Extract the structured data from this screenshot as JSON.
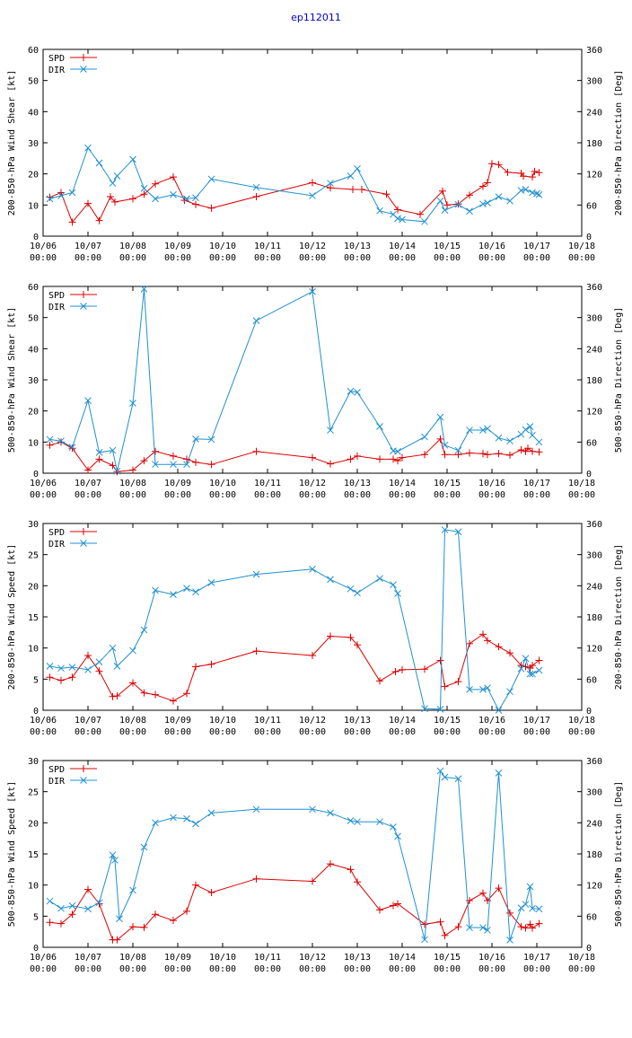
{
  "title": "ep112011",
  "colors": {
    "spd": "#dd0000",
    "dir": "#2090d0",
    "axis": "#000000"
  },
  "x_ticks": [
    "10/06",
    "10/07",
    "10/08",
    "10/09",
    "10/10",
    "10/11",
    "10/12",
    "10/13",
    "10/14",
    "10/15",
    "10/16",
    "10/17",
    "10/18"
  ],
  "x_ticks_time": "00:00",
  "chart_data": [
    {
      "type": "line",
      "ylabel": "200-850-hPa Wind Shear [kt]",
      "y2label": "200-850-hPa Direction [Deg]",
      "ylim": [
        0,
        60
      ],
      "yticks": [
        0,
        10,
        20,
        30,
        40,
        50,
        60
      ],
      "y2lim": [
        0,
        360
      ],
      "y2ticks": [
        0,
        60,
        120,
        180,
        240,
        300,
        360
      ],
      "xlim": [
        0,
        12
      ],
      "series": [
        {
          "name": "SPD",
          "axis": "left",
          "x": [
            0.15,
            0.4,
            0.65,
            1.0,
            1.25,
            1.5,
            1.6,
            2.0,
            2.25,
            2.5,
            2.9,
            3.15,
            3.4,
            3.75,
            4.75,
            6.0,
            6.4,
            6.9,
            7.1,
            7.65,
            7.9,
            8.4,
            8.9,
            9.0,
            9.25,
            9.5,
            9.8,
            9.9,
            10.0,
            10.15,
            10.35,
            10.65,
            10.7,
            10.9,
            10.95,
            11.05
          ],
          "y": [
            12.5,
            14,
            4.5,
            10.5,
            5,
            12.7,
            11,
            12,
            13.5,
            16.8,
            19,
            11.5,
            10.2,
            9,
            12.7,
            17.2,
            15.5,
            15,
            15,
            13.5,
            8.5,
            7,
            14.5,
            10,
            10.3,
            13.2,
            16,
            17.2,
            23.3,
            23,
            20.5,
            20.2,
            19.3,
            19,
            20.8,
            20.4
          ]
        },
        {
          "name": "DIR",
          "axis": "right",
          "x": [
            0.15,
            0.4,
            0.65,
            1.0,
            1.25,
            1.55,
            1.65,
            2.0,
            2.25,
            2.5,
            2.9,
            3.2,
            3.4,
            3.75,
            4.75,
            6.0,
            6.4,
            6.85,
            7.0,
            7.5,
            7.8,
            7.9,
            8.0,
            8.5,
            8.85,
            8.95,
            9.25,
            9.5,
            9.8,
            9.9,
            10.15,
            10.4,
            10.65,
            10.75,
            10.9,
            11.0,
            11.05
          ],
          "y": [
            72,
            78,
            84,
            170,
            141,
            102,
            116,
            148,
            92,
            72,
            80,
            72,
            74,
            110,
            94,
            78,
            102,
            116,
            130,
            49,
            42,
            34,
            32,
            28,
            68,
            50,
            61,
            48,
            62,
            64,
            76,
            68,
            88,
            90,
            84,
            82,
            80
          ]
        }
      ]
    },
    {
      "type": "line",
      "ylabel": "500-850-hPa Wind Shear [kt]",
      "y2label": "500-850-hPa Direction [Deg]",
      "ylim": [
        0,
        60
      ],
      "yticks": [
        0,
        10,
        20,
        30,
        40,
        50,
        60
      ],
      "y2lim": [
        0,
        360
      ],
      "y2ticks": [
        0,
        60,
        120,
        180,
        240,
        300,
        360
      ],
      "xlim": [
        0,
        12
      ],
      "series": [
        {
          "name": "SPD",
          "axis": "left",
          "x": [
            0.15,
            0.4,
            0.65,
            1.0,
            1.25,
            1.55,
            1.65,
            2.0,
            2.25,
            2.5,
            2.9,
            3.2,
            3.4,
            3.75,
            4.75,
            6.0,
            6.4,
            6.85,
            7.0,
            7.5,
            7.8,
            7.9,
            8.0,
            8.5,
            8.85,
            8.95,
            9.25,
            9.5,
            9.8,
            9.9,
            10.15,
            10.4,
            10.65,
            10.75,
            10.8,
            10.9,
            11.05
          ],
          "y": [
            9,
            10,
            8,
            1,
            4.5,
            2.5,
            0.5,
            1,
            4,
            7,
            5.5,
            4.5,
            3.5,
            2.8,
            7,
            5,
            3,
            4.5,
            5.5,
            4.5,
            4.5,
            4,
            5,
            6,
            11,
            6,
            6,
            6.5,
            6.3,
            6,
            6.3,
            5.8,
            7.5,
            7,
            8,
            7,
            6.8
          ]
        },
        {
          "name": "DIR",
          "axis": "right",
          "x": [
            0.15,
            0.4,
            0.65,
            1.0,
            1.25,
            1.55,
            1.65,
            2.0,
            2.25,
            2.5,
            2.9,
            3.2,
            3.4,
            3.75,
            4.75,
            6.0,
            6.4,
            6.85,
            7.0,
            7.5,
            7.8,
            7.9,
            8.5,
            8.85,
            8.95,
            9.25,
            9.5,
            9.8,
            9.9,
            10.15,
            10.4,
            10.65,
            10.75,
            10.85,
            10.9,
            11.05
          ],
          "y": [
            65,
            62,
            50,
            140,
            40,
            44,
            4,
            135,
            355,
            17,
            17,
            17,
            66,
            65,
            294,
            350,
            83,
            158,
            156,
            90,
            43,
            42,
            70,
            108,
            54,
            44,
            83,
            83,
            86,
            68,
            62,
            75,
            84,
            90,
            73,
            60
          ]
        }
      ]
    },
    {
      "type": "line",
      "ylabel": "200-850-hPa Wind Speed [kt]",
      "y2label": "200-850-hPa Direction [Deg]",
      "ylim": [
        0,
        30
      ],
      "yticks": [
        0,
        5,
        10,
        15,
        20,
        25,
        30
      ],
      "y2lim": [
        0,
        360
      ],
      "y2ticks": [
        0,
        60,
        120,
        180,
        240,
        300,
        360
      ],
      "xlim": [
        0,
        12
      ],
      "series": [
        {
          "name": "SPD",
          "axis": "left",
          "x": [
            0.15,
            0.4,
            0.65,
            1.0,
            1.25,
            1.55,
            1.65,
            2.0,
            2.25,
            2.5,
            2.9,
            3.2,
            3.4,
            3.75,
            4.75,
            6.0,
            6.4,
            6.85,
            7.0,
            7.5,
            7.85,
            8.0,
            8.5,
            8.85,
            8.95,
            9.25,
            9.5,
            9.8,
            9.9,
            10.15,
            10.4,
            10.65,
            10.75,
            10.85,
            10.9,
            11.05
          ],
          "y": [
            5.3,
            4.8,
            5.3,
            8.8,
            6.3,
            2.2,
            2.3,
            4.4,
            2.8,
            2.5,
            1.5,
            2.7,
            7,
            7.4,
            9.5,
            8.8,
            11.9,
            11.7,
            10.5,
            4.7,
            6.2,
            6.5,
            6.6,
            8,
            3.8,
            4.6,
            10.7,
            12.2,
            11.2,
            10.2,
            9.2,
            7.2,
            7,
            6.8,
            7.2,
            8
          ]
        },
        {
          "name": "DIR",
          "axis": "right",
          "x": [
            0.15,
            0.4,
            0.65,
            1.0,
            1.25,
            1.55,
            1.65,
            2.0,
            2.25,
            2.5,
            2.9,
            3.2,
            3.4,
            3.75,
            4.75,
            6.0,
            6.4,
            6.85,
            7.0,
            7.5,
            7.8,
            7.9,
            8.5,
            8.85,
            8.95,
            9.25,
            9.5,
            9.8,
            9.9,
            10.15,
            10.4,
            10.65,
            10.75,
            10.85,
            10.9,
            11.05
          ],
          "y": [
            85,
            81,
            83,
            78,
            93,
            120,
            85,
            115,
            155,
            231,
            223,
            235,
            228,
            246,
            262,
            272,
            252,
            234,
            226,
            254,
            242,
            225,
            3,
            2,
            348,
            344,
            40,
            40,
            43,
            0,
            36,
            80,
            100,
            70,
            70,
            77
          ]
        }
      ]
    },
    {
      "type": "line",
      "ylabel": "500-850-hPa Wind Speed [kt]",
      "y2label": "500-850-hPa Direction [Deg]",
      "ylim": [
        0,
        30
      ],
      "yticks": [
        0,
        5,
        10,
        15,
        20,
        25,
        30
      ],
      "y2lim": [
        0,
        360
      ],
      "y2ticks": [
        0,
        60,
        120,
        180,
        240,
        300,
        360
      ],
      "xlim": [
        0,
        12
      ],
      "series": [
        {
          "name": "SPD",
          "axis": "left",
          "x": [
            0.15,
            0.4,
            0.65,
            1.0,
            1.25,
            1.55,
            1.65,
            2.0,
            2.25,
            2.5,
            2.9,
            3.2,
            3.4,
            3.75,
            4.75,
            6.0,
            6.4,
            6.85,
            7.0,
            7.5,
            7.8,
            7.9,
            8.5,
            8.85,
            8.95,
            9.25,
            9.5,
            9.8,
            9.9,
            10.15,
            10.4,
            10.65,
            10.75,
            10.85,
            10.9,
            11.05
          ],
          "y": [
            4,
            3.8,
            5.3,
            9.3,
            7,
            1.2,
            1.2,
            3.3,
            3.2,
            5.3,
            4.3,
            5.8,
            10,
            8.8,
            11,
            10.6,
            13.4,
            12.5,
            10.5,
            6,
            6.7,
            7,
            3.7,
            4.1,
            1.9,
            3.3,
            7.5,
            8.7,
            7.5,
            9.5,
            5.5,
            3.3,
            3.1,
            3.7,
            3.1,
            3.8
          ]
        },
        {
          "name": "DIR",
          "axis": "right",
          "x": [
            0.15,
            0.4,
            0.65,
            1.0,
            1.25,
            1.55,
            1.6,
            1.7,
            2.0,
            2.25,
            2.5,
            2.9,
            3.2,
            3.4,
            3.75,
            4.75,
            6.0,
            6.4,
            6.85,
            7.0,
            7.5,
            7.8,
            7.9,
            8.5,
            8.85,
            8.95,
            9.25,
            9.5,
            9.8,
            9.9,
            10.15,
            10.4,
            10.65,
            10.75,
            10.85,
            10.9,
            11.05
          ],
          "y": [
            89,
            75,
            80,
            74,
            86,
            178,
            168,
            55,
            110,
            193,
            240,
            250,
            248,
            238,
            259,
            266,
            266,
            259,
            244,
            242,
            242,
            232,
            214,
            15,
            340,
            328,
            325,
            38,
            38,
            33,
            336,
            14,
            76,
            83,
            117,
            75,
            74
          ]
        }
      ]
    }
  ]
}
